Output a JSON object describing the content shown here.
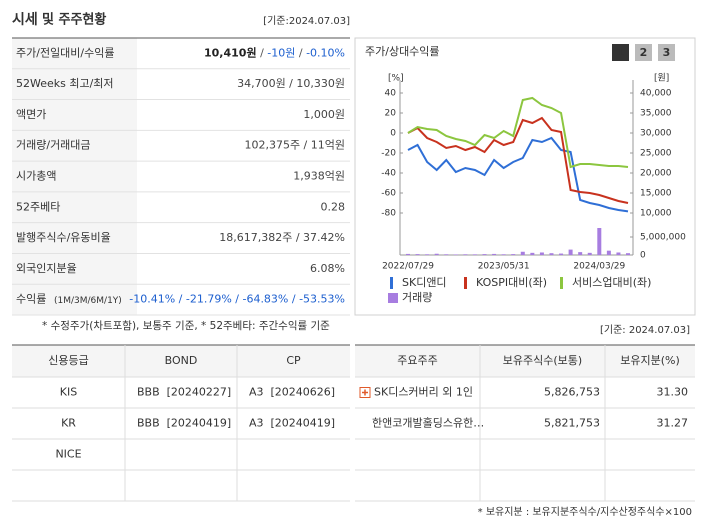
{
  "header": {
    "title_main": "시세",
    "title_rest": "및 주주현황",
    "date": "[기준:2024.07.03]"
  },
  "summary": {
    "rows": [
      {
        "label": "주가/전일대비/수익률",
        "value": [
          {
            "text": "10,410원",
            "color": "#222222",
            "bold": true
          },
          {
            "text": " / ",
            "color": "#555555"
          },
          {
            "text": "-10원",
            "color": "#1d5fcf"
          },
          {
            "text": " / ",
            "color": "#555555"
          },
          {
            "text": "-0.10%",
            "color": "#1d5fcf"
          }
        ]
      },
      {
        "label": "52Weeks 최고/최저",
        "value": [
          {
            "text": "34,700원 / 10,330원",
            "color": "#444444"
          }
        ]
      },
      {
        "label": "액면가",
        "value": [
          {
            "text": "1,000원",
            "color": "#444444"
          }
        ]
      },
      {
        "label": "거래량/거래대금",
        "value": [
          {
            "text": "102,375주 / 11억원",
            "color": "#444444"
          }
        ]
      },
      {
        "label": "시가총액",
        "value": [
          {
            "text": "1,938억원",
            "color": "#444444"
          }
        ]
      },
      {
        "label": "52주베타",
        "value": [
          {
            "text": "0.28",
            "color": "#444444"
          }
        ]
      },
      {
        "label": "발행주식수/유동비율",
        "value": [
          {
            "text": "18,617,382주 / 37.42%",
            "color": "#444444"
          }
        ]
      },
      {
        "label": "외국인지분율",
        "value": [
          {
            "text": "6.08%",
            "color": "#444444"
          }
        ]
      },
      {
        "label": "수익률",
        "label_note": "(1M/3M/6M/1Y)",
        "value": [
          {
            "text": "-10.41% / -21.79% / -64.83% / -53.53%",
            "color": "#1d5fcf"
          }
        ]
      }
    ]
  },
  "footnote": "* 수정주가(차트포함), 보통주 기준, * 52주베타: 주간수익률 기준",
  "chart_data": {
    "type": "line",
    "title": "주가/상대수익률",
    "buttons": [
      "1",
      "2",
      "3"
    ],
    "ylabel": "[%]",
    "y2label": "[원]",
    "categories": [
      "2022/07/29",
      null,
      null,
      null,
      null,
      null,
      null,
      null,
      null,
      null,
      "2023/05/31",
      null,
      null,
      null,
      null,
      null,
      null,
      null,
      null,
      null,
      "2024/03/29",
      null,
      null,
      null
    ],
    "ylim": [
      -80,
      40
    ],
    "yticks": [
      40,
      20,
      0,
      -20,
      -40,
      -60,
      -80
    ],
    "y2lim": [
      10000,
      40000
    ],
    "y2ticks": [
      {
        "value": 40000,
        "label": "40,000"
      },
      {
        "value": 35000,
        "label": "35,000"
      },
      {
        "value": 30000,
        "label": "30,000"
      },
      {
        "value": 25000,
        "label": "25,000"
      },
      {
        "value": 20000,
        "label": "20,000"
      },
      {
        "value": 15000,
        "label": "15,000"
      },
      {
        "value": 10000,
        "label": "10,000"
      }
    ],
    "y3lim": [
      0,
      10000000
    ],
    "y3ticks": [
      {
        "value": 5000000,
        "label": "5,000,000"
      },
      0
    ],
    "series": [
      {
        "name": "SK디앤디",
        "color": "#2f6fd6",
        "axis": "y2",
        "values": [
          25750,
          27000,
          22750,
          20750,
          23250,
          20250,
          21250,
          20750,
          19500,
          23250,
          21250,
          22750,
          23750,
          28250,
          27750,
          28750,
          25750,
          25250,
          13250,
          12500,
          12000,
          11250,
          10750,
          10410
        ]
      },
      {
        "name": "KOSPI대비(좌)",
        "color": "#c8321e",
        "values": [
          0,
          5,
          -5,
          -9,
          -15,
          -13,
          -17,
          -14,
          -19,
          -7,
          -12,
          -9,
          13,
          10,
          15,
          3,
          1,
          -57,
          -59,
          -60,
          -62,
          -65,
          -68,
          -70
        ]
      },
      {
        "name": "서비스업대비(좌)",
        "color": "#8cc63f",
        "values": [
          0,
          6,
          4,
          3,
          -3,
          -6,
          -8,
          -12,
          -2,
          -5,
          2,
          -3,
          33,
          35,
          28,
          25,
          20,
          -34,
          -31,
          -31,
          -32,
          -33,
          -33,
          -34
        ]
      },
      {
        "name": "거래량",
        "color": "#a77de0",
        "type": "bar",
        "axis": "y3",
        "values": [
          300000,
          250000,
          200000,
          350000,
          200000,
          150000,
          200000,
          180000,
          250000,
          300000,
          200000,
          250000,
          900000,
          600000,
          700000,
          500000,
          400000,
          1500000,
          800000,
          600000,
          7500000,
          1200000,
          700000,
          500000
        ]
      }
    ]
  },
  "credit": {
    "date": "[기준: 2024.07.03]",
    "header": [
      "신용등급",
      "BOND",
      "CP"
    ],
    "rows": [
      [
        "KIS",
        "BBB  [20240227]",
        "A3  [20240626]"
      ],
      [
        "KR",
        "BBB  [20240419]",
        "A3  [20240419]"
      ],
      [
        "NICE"
      ]
    ]
  },
  "shareholders": {
    "header": [
      "주요주주",
      "보유주식수(보통)",
      "보유지분(%)"
    ],
    "rows": [
      [
        "SK디스커버리 외 1인",
        "5,826,753",
        "31.30"
      ],
      [
        "한앤코개발홀딩스유한…",
        "5,821,753",
        "31.27"
      ]
    ]
  },
  "footnote2": "* 보유지분 : 보유지분주식수/지수산정주식수×100"
}
